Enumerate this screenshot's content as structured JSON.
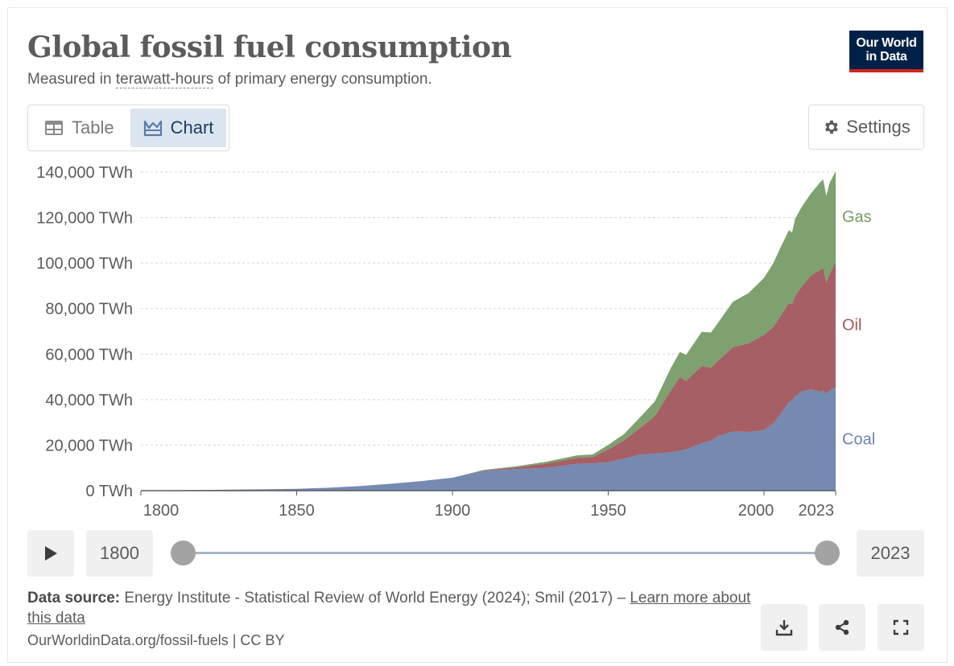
{
  "header": {
    "title": "Global fossil fuel consumption",
    "subtitle_prefix": "Measured in ",
    "subtitle_link": "terawatt-hours",
    "subtitle_suffix": " of primary energy consumption.",
    "logo_line1": "Our World",
    "logo_line2": "in Data"
  },
  "tabs": [
    {
      "label": "Table",
      "icon": "table-icon",
      "active": false
    },
    {
      "label": "Chart",
      "icon": "chart-icon",
      "active": true
    }
  ],
  "settings_label": "Settings",
  "timeline": {
    "start_label": "1800",
    "end_label": "2023"
  },
  "footer": {
    "source_label": "Data source:",
    "source_text": " Energy Institute - Statistical Review of World Energy (2024); Smil (2017) – ",
    "learn_more": "Learn more about this data",
    "url": "OurWorldinData.org/fossil-fuels | CC BY"
  },
  "colors": {
    "coal": "#6d84ad",
    "oil": "#a1565d",
    "gas": "#769c67"
  },
  "chart_data": {
    "type": "area",
    "stacked": true,
    "title": "Global fossil fuel consumption",
    "ylabel": "",
    "xlabel": "",
    "ylim": [
      0,
      140000
    ],
    "xlim": [
      1800,
      2023
    ],
    "y_ticks": [
      "0 TWh",
      "20,000 TWh",
      "40,000 TWh",
      "60,000 TWh",
      "80,000 TWh",
      "100,000 TWh",
      "120,000 TWh",
      "140,000 TWh"
    ],
    "y_tick_values": [
      0,
      20000,
      40000,
      60000,
      80000,
      100000,
      120000,
      140000
    ],
    "x_ticks": [
      "1800",
      "1850",
      "1900",
      "1950",
      "2000",
      "2023"
    ],
    "x_tick_values": [
      1800,
      1850,
      1900,
      1950,
      2000,
      2023
    ],
    "grid": "horizontal dashed",
    "x": [
      1800,
      1820,
      1840,
      1850,
      1860,
      1870,
      1880,
      1890,
      1900,
      1910,
      1920,
      1930,
      1940,
      1945,
      1950,
      1955,
      1960,
      1965,
      1970,
      1973,
      1975,
      1980,
      1983,
      1985,
      1990,
      1995,
      2000,
      2003,
      2005,
      2008,
      2009,
      2010,
      2012,
      2015,
      2018,
      2019,
      2020,
      2021,
      2023
    ],
    "series": [
      {
        "name": "Coal",
        "color": "#6d84ad",
        "values": [
          100,
          300,
          600,
          800,
          1300,
          2000,
          3000,
          4200,
          5700,
          8600,
          9500,
          10000,
          11800,
          12000,
          12500,
          14000,
          15800,
          16300,
          16800,
          17500,
          18200,
          20800,
          22000,
          23800,
          26000,
          25800,
          26500,
          29500,
          33000,
          39000,
          39500,
          41500,
          43500,
          44500,
          43500,
          44000,
          42500,
          44000,
          45500
        ]
      },
      {
        "name": "Oil",
        "color": "#a1565d",
        "values": [
          0,
          0,
          0,
          0,
          0,
          0,
          0,
          0,
          0,
          300,
          700,
          1900,
          2700,
          2700,
          5600,
          8000,
          11500,
          16500,
          27000,
          32500,
          30000,
          34000,
          32000,
          33000,
          37000,
          39000,
          42000,
          42500,
          43000,
          43500,
          42500,
          44000,
          46000,
          50000,
          53500,
          53800,
          49000,
          51000,
          55000
        ]
      },
      {
        "name": "Gas",
        "color": "#769c67",
        "values": [
          0,
          0,
          0,
          0,
          0,
          0,
          0,
          0,
          0,
          200,
          400,
          800,
          1000,
          1200,
          2000,
          2800,
          4600,
          6500,
          9800,
          11000,
          11500,
          15000,
          15500,
          16500,
          20000,
          22000,
          25000,
          28000,
          30000,
          32000,
          31500,
          34000,
          35000,
          36000,
          38500,
          39000,
          38000,
          40000,
          40000
        ]
      }
    ],
    "series_labels": [
      "Gas",
      "Oil",
      "Coal"
    ]
  }
}
